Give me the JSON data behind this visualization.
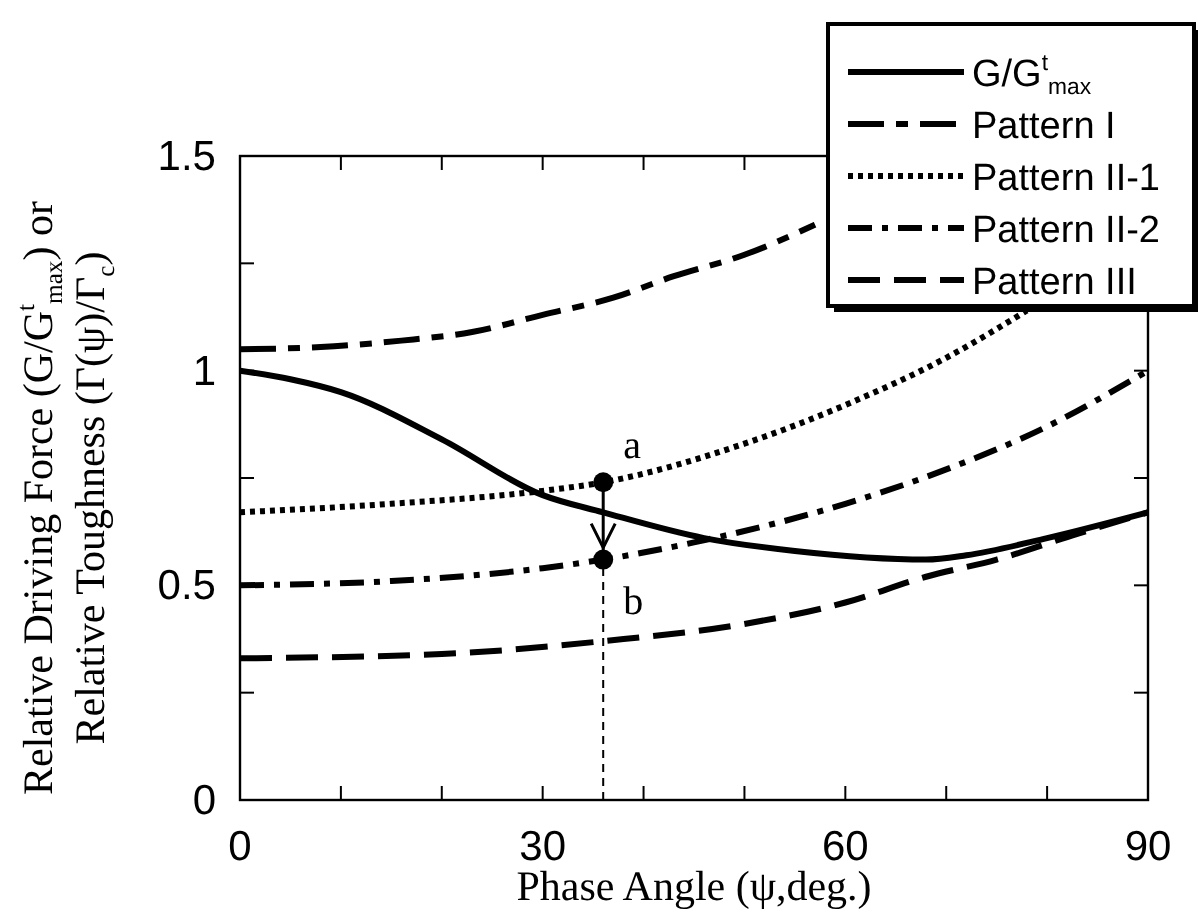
{
  "chart_data": {
    "type": "line",
    "xlabel": "Phase Angle (ψ,deg.)",
    "ylabel": "Relative Driving Force (G/G$^{t}$$_{max}$) or\nRelative Toughness (Γ(ψ)/Γ$_{c}$)",
    "xlim": [
      0,
      90
    ],
    "ylim": [
      0,
      1.5
    ],
    "xticks": [
      0,
      {
        "value": 10,
        "label": null
      },
      {
        "value": 20,
        "label": null
      },
      30,
      {
        "value": 40,
        "label": null
      },
      {
        "value": 50,
        "label": null
      },
      60,
      {
        "value": 70,
        "label": null
      },
      {
        "value": 80,
        "label": null
      },
      90
    ],
    "yticks": [
      0,
      {
        "value": 0.25,
        "label": null
      },
      0.5,
      {
        "value": 0.75,
        "label": null
      },
      1,
      {
        "value": 1.25,
        "label": null
      },
      1.5
    ],
    "grid": false,
    "legend": "top right",
    "series": [
      {
        "name": "G/G$^{t}$$_{max}$",
        "color": "#000000",
        "line_style": "solid",
        "x": [
          0,
          5,
          10,
          20,
          30,
          36,
          46,
          55,
          68,
          72,
          80,
          90
        ],
        "values": [
          1,
          0.98,
          0.95,
          0.84,
          0.71,
          0.67,
          0.61,
          0.58,
          0.56,
          0.57,
          0.61,
          0.67
        ]
      },
      {
        "name": "Pattern I",
        "color": "#000000",
        "line_style": "longdashdot",
        "x": [
          0,
          8,
          16,
          23,
          30,
          37,
          43,
          50,
          57
        ],
        "values": [
          1.05,
          1.055,
          1.07,
          1.09,
          1.13,
          1.17,
          1.22,
          1.27,
          1.34
        ]
      },
      {
        "name": "Pattern II-1",
        "color": "#000000",
        "line_style": "dotted",
        "x": [
          0,
          15,
          30,
          36,
          50,
          60,
          70,
          78
        ],
        "values": [
          0.67,
          0.69,
          0.72,
          0.74,
          0.83,
          0.92,
          1.03,
          1.14
        ]
      },
      {
        "name": "Pattern II-2",
        "color": "#000000",
        "line_style": "dashdot",
        "x": [
          0,
          15,
          30,
          36,
          45,
          60,
          70,
          80,
          90
        ],
        "values": [
          0.5,
          0.51,
          0.54,
          0.56,
          0.6,
          0.69,
          0.77,
          0.87,
          1.0
        ]
      },
      {
        "name": "Pattern III",
        "color": "#000000",
        "line_style": "dashed",
        "x": [
          0,
          20,
          36,
          50,
          60,
          68,
          75,
          83,
          90
        ],
        "values": [
          0.33,
          0.34,
          0.37,
          0.41,
          0.46,
          0.52,
          0.56,
          0.62,
          0.67
        ]
      }
    ],
    "ref_lines": [
      {
        "axis": "x",
        "value": 36,
        "line_style": "dashed",
        "color": "#000000"
      }
    ],
    "annotations": [
      {
        "text": "a",
        "x": 36,
        "y": 0.74
      },
      {
        "text": "b",
        "x": 36,
        "y": 0.56
      }
    ]
  }
}
